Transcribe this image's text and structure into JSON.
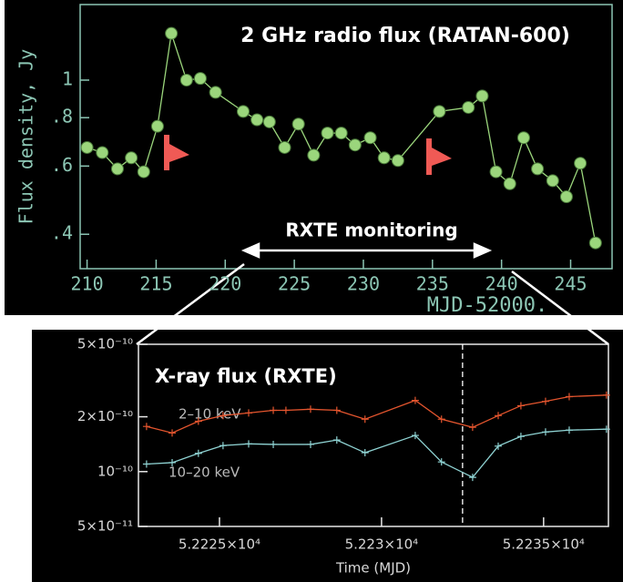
{
  "chart_data": [
    {
      "type": "line",
      "title": "2 GHz radio flux (RATAN-600)",
      "ylabel": "Flux density, Jy",
      "xlabel": "MJD-52000.",
      "annotations": [
        "RXTE monitoring"
      ],
      "x": [
        210,
        211.1,
        212.2,
        213.2,
        214.1,
        215.1,
        216.1,
        217.2,
        218.2,
        219.3,
        221.3,
        222.3,
        223.2,
        224.3,
        225.3,
        226.4,
        227.4,
        228.4,
        229.4,
        230.5,
        231.5,
        232.5,
        235.5,
        237.6,
        238.6,
        239.6,
        240.6,
        241.6,
        242.6,
        243.7,
        244.7,
        245.7,
        246.8
      ],
      "values": [
        0.67,
        0.65,
        0.59,
        0.63,
        0.58,
        0.76,
        1.32,
        1.0,
        1.01,
        0.93,
        0.83,
        0.79,
        0.78,
        0.67,
        0.77,
        0.64,
        0.73,
        0.73,
        0.68,
        0.71,
        0.63,
        0.62,
        0.83,
        0.85,
        0.91,
        0.58,
        0.54,
        0.71,
        0.59,
        0.55,
        0.5,
        0.61,
        0.38
      ],
      "color": "#9bd67c",
      "log_y": true,
      "xlim": [
        209.5,
        248
      ],
      "xticks": [
        210,
        215,
        220,
        225,
        230,
        235,
        240,
        245
      ],
      "ylim": [
        0.326,
        1.61
      ],
      "yticks": [
        1,
        {
          "value": 0.8,
          "label": ".8"
        },
        {
          "value": 0.6,
          "label": ".6"
        },
        {
          "value": 0.4,
          "label": ".4"
        }
      ]
    },
    {
      "type": "line",
      "title": "X-ray flux (RXTE)",
      "xlabel": "Time (MJD)",
      "log_y": true,
      "series": [
        {
          "name": "2–10 keV",
          "color": "#e4552e",
          "x": [
            52222.75,
            52223.54,
            52224.35,
            52225.11,
            52225.9,
            52226.66,
            52227.05,
            52227.81,
            52228.62,
            52229.49,
            52231.04,
            52231.85,
            52232.81,
            52233.6,
            52234.3,
            52235.06,
            52235.79,
            52236.94
          ],
          "values": [
            1.77e-10,
            1.63e-10,
            1.89e-10,
            2.03e-10,
            2.1e-10,
            2.17e-10,
            2.17e-10,
            2.2e-10,
            2.17e-10,
            1.94e-10,
            2.46e-10,
            1.94e-10,
            1.75e-10,
            2.03e-10,
            2.3e-10,
            2.43e-10,
            2.58e-10,
            2.63e-10
          ]
        },
        {
          "name": "10–20 keV",
          "color": "#8fd3d3",
          "x": [
            52222.75,
            52223.54,
            52224.35,
            52225.11,
            52225.9,
            52226.66,
            52227.81,
            52228.62,
            52229.49,
            52231.04,
            52231.85,
            52232.81,
            52233.6,
            52234.3,
            52235.06,
            52235.79,
            52236.94
          ],
          "values": [
            1.1e-10,
            1.12e-10,
            1.26e-10,
            1.39e-10,
            1.42e-10,
            1.41e-10,
            1.41e-10,
            1.49e-10,
            1.27e-10,
            1.58e-10,
            1.13e-10,
            9.3e-11,
            1.38e-10,
            1.56e-10,
            1.65e-10,
            1.69e-10,
            1.71e-10
          ]
        }
      ],
      "vlines": [
        52232.5
      ],
      "xlim": [
        52222.5,
        52237
      ],
      "xticks": [
        {
          "value": 52225,
          "label": "5.2225×10⁴"
        },
        {
          "value": 52230,
          "label": "5.223×10⁴"
        },
        {
          "value": 52235,
          "label": "5.2235×10⁴"
        }
      ],
      "ylim": [
        5e-11,
        5e-10
      ],
      "yticks": [
        {
          "value": 5e-10,
          "label": "5×10⁻¹⁰"
        },
        {
          "value": 2e-10,
          "label": "2×10⁻¹⁰"
        },
        {
          "value": 1e-10,
          "label": "10⁻¹⁰"
        },
        {
          "value": 5e-11,
          "label": "5×10⁻¹¹"
        }
      ]
    }
  ]
}
